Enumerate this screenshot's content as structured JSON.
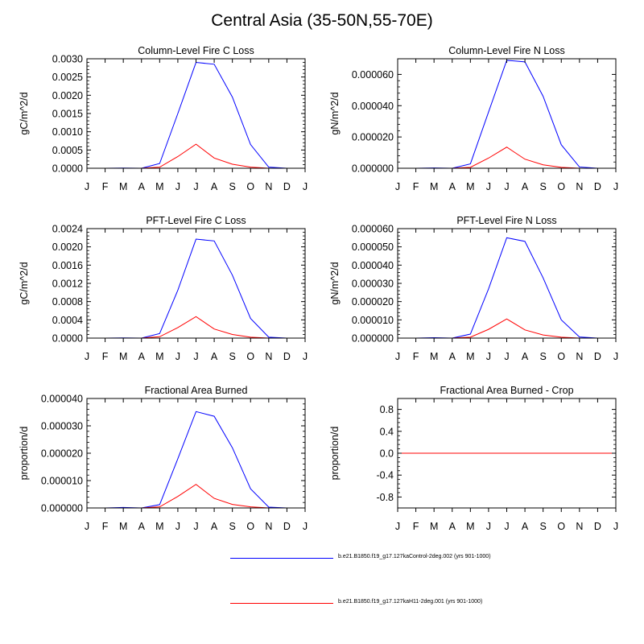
{
  "figure": {
    "title": "Central Asia (35-50N,55-70E)"
  },
  "colors": {
    "control": "#0000ff",
    "experiment": "#ff0000",
    "axis": "#000000"
  },
  "months": [
    "J",
    "F",
    "M",
    "A",
    "M",
    "J",
    "J",
    "A",
    "S",
    "O",
    "N",
    "D",
    "J"
  ],
  "legend": [
    {
      "label": "b.e21.B1850.f19_g17.127kaControl-2deg.002 (yrs 901-1000)",
      "color_key": "control"
    },
    {
      "label": "b.e21.B1850.f19_g17.127kaH11-2deg.001 (yrs 901-1000)",
      "color_key": "experiment"
    }
  ],
  "chart_data": [
    {
      "type": "line",
      "title": "Column-Level Fire C Loss",
      "ylabel": "gC/m^2/d",
      "ylim": [
        0,
        0.003
      ],
      "yticks": [
        "0.0000",
        "0.0005",
        "0.0010",
        "0.0015",
        "0.0020",
        "0.0025",
        "0.0030"
      ],
      "x": [
        "J",
        "F",
        "M",
        "A",
        "M",
        "J",
        "J",
        "A",
        "S",
        "O",
        "N",
        "D",
        "J"
      ],
      "series": [
        {
          "values": [
            0,
            0,
            5e-06,
            0,
            0.00013,
            0.0015,
            0.0029,
            0.00285,
            0.00195,
            0.00065,
            3e-05,
            0,
            0
          ]
        },
        {
          "values": [
            0,
            0,
            0,
            0,
            3e-05,
            0.00032,
            0.00066,
            0.00028,
            0.00011,
            3e-05,
            0,
            0,
            0
          ]
        }
      ]
    },
    {
      "type": "line",
      "title": "Column-Level Fire N Loss",
      "ylabel": "gN/m^2/d",
      "ylim": [
        0,
        7e-05
      ],
      "yticks": [
        "0.000000",
        "0.000020",
        "0.000040",
        "0.000060"
      ],
      "ytick_values": [
        0,
        2e-05,
        4e-05,
        6e-05
      ],
      "x": [
        "J",
        "F",
        "M",
        "A",
        "M",
        "J",
        "J",
        "A",
        "S",
        "O",
        "N",
        "D",
        "J"
      ],
      "series": [
        {
          "values": [
            0,
            0,
            2e-07,
            0,
            2.8e-06,
            3.6e-05,
            6.9e-05,
            6.8e-05,
            4.6e-05,
            1.5e-05,
            8e-07,
            0,
            0
          ]
        },
        {
          "values": [
            0,
            0,
            0,
            0,
            6e-07,
            6.5e-06,
            1.35e-05,
            5.8e-06,
            2.2e-06,
            6e-07,
            0,
            0,
            0
          ]
        }
      ]
    },
    {
      "type": "line",
      "title": "PFT-Level Fire C Loss",
      "ylabel": "gC/m^2/d",
      "ylim": [
        0,
        0.0024
      ],
      "yticks": [
        "0.0000",
        "0.0004",
        "0.0008",
        "0.0012",
        "0.0016",
        "0.0020",
        "0.0024"
      ],
      "x": [
        "J",
        "F",
        "M",
        "A",
        "M",
        "J",
        "J",
        "A",
        "S",
        "O",
        "N",
        "D",
        "J"
      ],
      "series": [
        {
          "values": [
            0,
            0,
            5e-06,
            0,
            0.0001,
            0.00105,
            0.00217,
            0.00213,
            0.00138,
            0.00043,
            2e-05,
            0,
            0
          ]
        },
        {
          "values": [
            0,
            0,
            0,
            0,
            3e-05,
            0.00023,
            0.00047,
            0.0002,
            8e-05,
            2e-05,
            0,
            0,
            0
          ]
        }
      ]
    },
    {
      "type": "line",
      "title": "PFT-Level Fire N Loss",
      "ylabel": "gN/m^2/d",
      "ylim": [
        0,
        6e-05
      ],
      "yticks": [
        "0.000000",
        "0.000010",
        "0.000020",
        "0.000030",
        "0.000040",
        "0.000050",
        "0.000060"
      ],
      "x": [
        "J",
        "F",
        "M",
        "A",
        "M",
        "J",
        "J",
        "A",
        "S",
        "O",
        "N",
        "D",
        "J"
      ],
      "series": [
        {
          "values": [
            0,
            0,
            2e-07,
            0,
            2.2e-06,
            2.7e-05,
            5.5e-05,
            5.3e-05,
            3.3e-05,
            1e-05,
            6e-07,
            0,
            0
          ]
        },
        {
          "values": [
            0,
            0,
            0,
            0,
            5e-07,
            4.8e-06,
            1.05e-05,
            4.5e-06,
            1.7e-06,
            5e-07,
            0,
            0,
            0
          ]
        }
      ]
    },
    {
      "type": "line",
      "title": "Fractional Area Burned",
      "ylabel": "proportion/d",
      "ylim": [
        0,
        4e-05
      ],
      "yticks": [
        "0.000000",
        "0.000010",
        "0.000020",
        "0.000030",
        "0.000040"
      ],
      "x": [
        "J",
        "F",
        "M",
        "A",
        "M",
        "J",
        "J",
        "A",
        "S",
        "O",
        "N",
        "D",
        "J"
      ],
      "series": [
        {
          "values": [
            0,
            0,
            2e-07,
            0,
            1.2e-06,
            1.8e-05,
            3.52e-05,
            3.35e-05,
            2.2e-05,
            7e-06,
            3e-07,
            0,
            null
          ]
        },
        {
          "values": [
            0,
            0,
            0,
            0,
            4e-07,
            4.2e-06,
            8.6e-06,
            3.5e-06,
            1.3e-06,
            4e-07,
            0,
            null,
            null
          ]
        }
      ]
    },
    {
      "type": "line",
      "title": "Fractional Area Burned - Crop",
      "ylabel": "proportion/d",
      "ylim": [
        -1,
        1
      ],
      "yticks": [
        "-0.8",
        "-0.4",
        "0.0",
        "0.4",
        "0.8"
      ],
      "ytick_values": [
        -0.8,
        -0.4,
        0,
        0.4,
        0.8
      ],
      "x": [
        "J",
        "F",
        "M",
        "A",
        "M",
        "J",
        "J",
        "A",
        "S",
        "O",
        "N",
        "D",
        "J"
      ],
      "series": [
        {
          "values": [
            0,
            0,
            0,
            0,
            0,
            0,
            0,
            0,
            0,
            0,
            0,
            0,
            0
          ]
        },
        {
          "values": [
            0,
            0,
            0,
            0,
            0,
            0,
            0,
            0,
            0,
            0,
            0,
            0,
            0
          ]
        }
      ]
    }
  ]
}
